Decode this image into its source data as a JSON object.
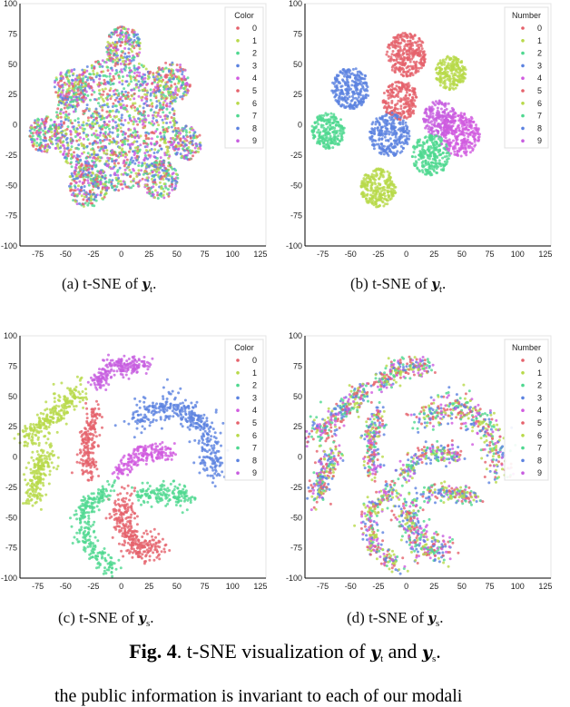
{
  "palette": {
    "0": "#e5616b",
    "1": "#b8d94a",
    "2": "#4fd890",
    "3": "#5b82e0",
    "4": "#d15be0",
    "5": "#e5616b",
    "6": "#b8d94a",
    "7": "#4fd890",
    "8": "#5b82e0",
    "9": "#c75ee0"
  },
  "captions": {
    "a": {
      "prefix": "(a)  t-SNE of ",
      "var": "y",
      "sub": "t",
      "suffix": "."
    },
    "b": {
      "prefix": "(b)  t-SNE of ",
      "var": "y",
      "sub": "t",
      "suffix": "."
    },
    "c": {
      "prefix": "(c)  t-SNE of ",
      "var": "y",
      "sub": "s",
      "suffix": "."
    },
    "d": {
      "prefix": "(d)  t-SNE of ",
      "var": "y",
      "sub": "s",
      "suffix": "."
    }
  },
  "figure_caption": {
    "label": "Fig. 4",
    "text1": ". t-SNE visualization of ",
    "var1": "y",
    "sub1": "t",
    "text2": " and ",
    "var2": "y",
    "sub2": "s",
    "text3": "."
  },
  "body_text": "the public information is invariant to each of our modali",
  "chart_data": [
    {
      "id": "a",
      "type": "scatter",
      "legend_title": "Color",
      "legend_labels": [
        "0",
        "1",
        "2",
        "3",
        "4",
        "5",
        "6",
        "7",
        "8",
        "9"
      ],
      "legend_placement": "top-right",
      "xticks": [
        -75,
        -50,
        -25,
        0,
        25,
        50,
        75,
        100,
        125
      ],
      "yticks": [
        100,
        75,
        50,
        25,
        0,
        -25,
        -50,
        -75,
        -100
      ],
      "xlim": [
        -91,
        130
      ],
      "ylim": [
        -100,
        100
      ],
      "clusters": [
        {
          "label": "mixed",
          "path": [
            [
              -5,
              0
            ]
          ],
          "spread": 55,
          "n": 1400
        },
        {
          "label": "mixed",
          "path": [
            [
              2,
              65
            ]
          ],
          "spread": 16,
          "n": 200
        },
        {
          "label": "mixed",
          "path": [
            [
              45,
              35
            ]
          ],
          "spread": 17,
          "n": 200
        },
        {
          "label": "mixed",
          "path": [
            [
              -45,
              30
            ]
          ],
          "spread": 16,
          "n": 180
        },
        {
          "label": "mixed",
          "path": [
            [
              -68,
              -8
            ]
          ],
          "spread": 15,
          "n": 180
        },
        {
          "label": "mixed",
          "path": [
            [
              -30,
              -50
            ]
          ],
          "spread": 18,
          "n": 220
        },
        {
          "label": "mixed",
          "path": [
            [
              35,
              -45
            ]
          ],
          "spread": 16,
          "n": 180
        },
        {
          "label": "mixed",
          "path": [
            [
              58,
              -15
            ]
          ],
          "spread": 14,
          "n": 150
        }
      ]
    },
    {
      "id": "b",
      "type": "scatter",
      "legend_title": "Number",
      "legend_labels": [
        "0",
        "1",
        "2",
        "3",
        "4",
        "5",
        "6",
        "7",
        "8",
        "9"
      ],
      "legend_placement": "top-right",
      "xticks": [
        -75,
        -50,
        -25,
        0,
        25,
        50,
        75,
        100,
        125
      ],
      "yticks": [
        100,
        75,
        50,
        25,
        0,
        -25,
        -50,
        -75,
        -100
      ],
      "xlim": [
        -91,
        130
      ],
      "ylim": [
        -100,
        100
      ],
      "clusters": [
        {
          "label": "0",
          "path": [
            [
              0,
              58
            ]
          ],
          "spread": 18,
          "n": 300
        },
        {
          "label": "5",
          "path": [
            [
              -5,
              20
            ]
          ],
          "spread": 16,
          "n": 220
        },
        {
          "label": "1",
          "path": [
            [
              40,
              43
            ]
          ],
          "spread": 14,
          "n": 220
        },
        {
          "label": "6",
          "path": [
            [
              -25,
              -52
            ]
          ],
          "spread": 16,
          "n": 260
        },
        {
          "label": "3",
          "path": [
            [
              -50,
              30
            ]
          ],
          "spread": 17,
          "n": 260
        },
        {
          "label": "8",
          "path": [
            [
              -15,
              -8
            ]
          ],
          "spread": 18,
          "n": 260
        },
        {
          "label": "2",
          "path": [
            [
              -70,
              -5
            ]
          ],
          "spread": 15,
          "n": 220
        },
        {
          "label": "7",
          "path": [
            [
              22,
              -25
            ]
          ],
          "spread": 17,
          "n": 250
        },
        {
          "label": "4",
          "path": [
            [
              48,
              -8
            ]
          ],
          "spread": 18,
          "n": 280
        },
        {
          "label": "9",
          "path": [
            [
              30,
              5
            ]
          ],
          "spread": 15,
          "n": 200
        }
      ]
    },
    {
      "id": "c",
      "type": "scatter",
      "legend_title": "Color",
      "legend_labels": [
        "0",
        "1",
        "2",
        "3",
        "4",
        "5",
        "6",
        "7",
        "8",
        "9"
      ],
      "legend_placement": "top-right",
      "xticks": [
        -75,
        -50,
        -25,
        0,
        25,
        50,
        75,
        100,
        125
      ],
      "yticks": [
        100,
        75,
        50,
        25,
        0,
        -25,
        -50,
        -75,
        -100
      ],
      "xlim": [
        -91,
        130
      ],
      "ylim": [
        -100,
        100
      ],
      "clusters": [
        {
          "label": "9",
          "path": [
            [
              -25,
              60
            ],
            [
              -5,
              75
            ],
            [
              20,
              75
            ]
          ],
          "spread": 4,
          "n": 220
        },
        {
          "label": "1",
          "path": [
            [
              -85,
              15
            ],
            [
              -60,
              35
            ],
            [
              -38,
              55
            ]
          ],
          "spread": 5,
          "n": 260
        },
        {
          "label": "6",
          "path": [
            [
              -65,
              8
            ],
            [
              -75,
              -15
            ],
            [
              -80,
              -35
            ]
          ],
          "spread": 5,
          "n": 200
        },
        {
          "label": "5",
          "path": [
            [
              -25,
              40
            ],
            [
              -32,
              10
            ],
            [
              -28,
              -18
            ]
          ],
          "spread": 4,
          "n": 200
        },
        {
          "label": "3",
          "path": [
            [
              10,
              30
            ],
            [
              45,
              45
            ],
            [
              75,
              25
            ],
            [
              85,
              -15
            ]
          ],
          "spread": 6,
          "n": 380
        },
        {
          "label": "4",
          "path": [
            [
              -5,
              -15
            ],
            [
              20,
              5
            ],
            [
              45,
              2
            ]
          ],
          "spread": 4,
          "n": 200
        },
        {
          "label": "7",
          "path": [
            [
              -10,
              -25
            ],
            [
              -35,
              -45
            ],
            [
              -30,
              -75
            ],
            [
              -5,
              -92
            ]
          ],
          "spread": 4,
          "n": 260
        },
        {
          "label": "2",
          "path": [
            [
              15,
              -30
            ],
            [
              40,
              -30
            ],
            [
              62,
              -35
            ]
          ],
          "spread": 4,
          "n": 160
        },
        {
          "label": "0",
          "path": [
            [
              5,
              -35
            ],
            [
              0,
              -55
            ],
            [
              15,
              -75
            ],
            [
              35,
              -75
            ]
          ],
          "spread": 6,
          "n": 300
        }
      ]
    },
    {
      "id": "d",
      "type": "scatter",
      "legend_title": "Number",
      "legend_labels": [
        "0",
        "1",
        "2",
        "3",
        "4",
        "5",
        "6",
        "7",
        "8",
        "9"
      ],
      "legend_placement": "top-right",
      "xticks": [
        -75,
        -50,
        -25,
        0,
        25,
        50,
        75,
        100,
        125
      ],
      "yticks": [
        100,
        75,
        50,
        25,
        0,
        -25,
        -50,
        -75,
        -100
      ],
      "xlim": [
        -91,
        130
      ],
      "ylim": [
        -100,
        100
      ],
      "clusters": [
        {
          "label": "mixed",
          "path": [
            [
              -25,
              60
            ],
            [
              -5,
              75
            ],
            [
              20,
              75
            ]
          ],
          "spread": 4,
          "n": 220
        },
        {
          "label": "mixed",
          "path": [
            [
              -85,
              15
            ],
            [
              -60,
              35
            ],
            [
              -38,
              55
            ]
          ],
          "spread": 5,
          "n": 260
        },
        {
          "label": "mixed",
          "path": [
            [
              -65,
              8
            ],
            [
              -75,
              -15
            ],
            [
              -80,
              -35
            ]
          ],
          "spread": 5,
          "n": 200
        },
        {
          "label": "mixed",
          "path": [
            [
              -25,
              40
            ],
            [
              -32,
              10
            ],
            [
              -28,
              -18
            ]
          ],
          "spread": 4,
          "n": 200
        },
        {
          "label": "mixed",
          "path": [
            [
              10,
              30
            ],
            [
              45,
              45
            ],
            [
              75,
              25
            ],
            [
              85,
              -15
            ]
          ],
          "spread": 6,
          "n": 380
        },
        {
          "label": "mixed",
          "path": [
            [
              -5,
              -15
            ],
            [
              20,
              5
            ],
            [
              45,
              2
            ]
          ],
          "spread": 4,
          "n": 200
        },
        {
          "label": "mixed",
          "path": [
            [
              -10,
              -25
            ],
            [
              -35,
              -45
            ],
            [
              -30,
              -75
            ],
            [
              -5,
              -92
            ]
          ],
          "spread": 4,
          "n": 260
        },
        {
          "label": "mixed",
          "path": [
            [
              15,
              -30
            ],
            [
              40,
              -30
            ],
            [
              62,
              -35
            ]
          ],
          "spread": 4,
          "n": 160
        },
        {
          "label": "mixed",
          "path": [
            [
              5,
              -35
            ],
            [
              0,
              -55
            ],
            [
              15,
              -75
            ],
            [
              35,
              -75
            ]
          ],
          "spread": 6,
          "n": 300
        }
      ]
    }
  ]
}
